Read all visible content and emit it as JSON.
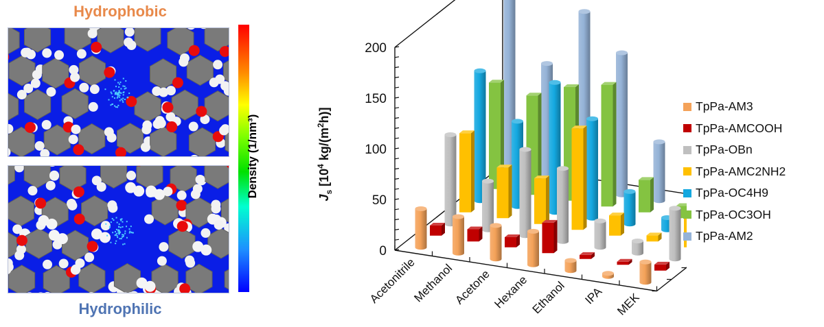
{
  "left_panel": {
    "top_title": "Hydrophobic",
    "bottom_title": "Hydrophilic",
    "top_title_color": "#e8894a",
    "bottom_title_color": "#4f74b3",
    "colorbar_label": "Density (1/nm³)",
    "colorbar_colors": [
      "#ff0000",
      "#ff8c00",
      "#ffff00",
      "#00e000",
      "#00ffd0",
      "#1e90ff",
      "#0000ff"
    ]
  },
  "chart_data": {
    "type": "bar",
    "subtype": "3d-bar",
    "title": "",
    "ylabel": "Js [10⁴ kg/(m²h)]",
    "ylabel_parts": {
      "symbol": "J",
      "subscript": "s",
      "unit_pre": " [10",
      "exp1": "4",
      "unit_mid": " kg/(m",
      "exp2": "2",
      "unit_post": "h)]"
    },
    "xlabel": "",
    "ylim": [
      0,
      200
    ],
    "yticks": [
      0,
      50,
      100,
      150,
      200
    ],
    "ytick_labels": [
      "0",
      "50",
      "100",
      "150",
      "200"
    ],
    "categories": [
      "Acetonitrile",
      "Methanol",
      "Acetone",
      "Hexane",
      "Ethanol",
      "IPA",
      "MEK"
    ],
    "legend_position": "right",
    "series": [
      {
        "name": "TpPa-AM3",
        "color": "#f4a259",
        "shape": "cylinder",
        "values": [
          38,
          36,
          33,
          33,
          10,
          3,
          20
        ]
      },
      {
        "name": "TpPa-AMCOOH",
        "color": "#c00000",
        "shape": "box",
        "values": [
          10,
          12,
          10,
          30,
          4,
          3,
          6
        ]
      },
      {
        "name": "TpPa-OBn",
        "color": "#bfbfbf",
        "shape": "cylinder",
        "values": [
          88,
          48,
          85,
          72,
          26,
          12,
          50
        ]
      },
      {
        "name": "TpPa-AMC2NH2",
        "color": "#ffc000",
        "shape": "box",
        "values": [
          78,
          50,
          45,
          100,
          20,
          6,
          30
        ]
      },
      {
        "name": "TpPa-OC4H9",
        "color": "#14a8e0",
        "shape": "cylinder",
        "values": [
          128,
          84,
          128,
          98,
          32,
          12,
          90
        ]
      },
      {
        "name": "TpPa-OC3OH",
        "color": "#84c341",
        "shape": "box",
        "values": [
          105,
          98,
          112,
          120,
          32,
          12,
          75
        ]
      },
      {
        "name": "TpPa-AM2",
        "color": "#95b3d7",
        "shape": "cylinder",
        "values": [
          178,
          118,
          175,
          140,
          58,
          20,
          128
        ]
      }
    ]
  }
}
